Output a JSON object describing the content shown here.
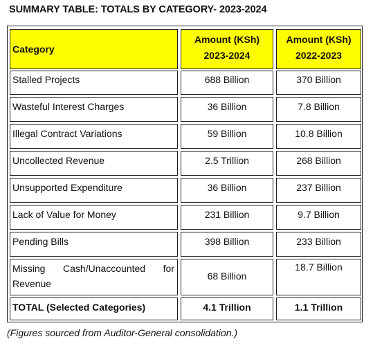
{
  "title": "SUMMARY TABLE: TOTALS BY CATEGORY- 2023-2024",
  "table": {
    "headers": {
      "category": "Category",
      "col1_line1": "Amount (KSh)",
      "col1_line2": "2023-2024",
      "col2_line1": "Amount (KSh)",
      "col2_line2": "2022-2023"
    },
    "rows": [
      {
        "category": "Stalled Projects",
        "amount_2023_2024": "688 Billion",
        "amount_2022_2023": "370 Billion"
      },
      {
        "category": "Wasteful Interest Charges",
        "amount_2023_2024": "36 Billion",
        "amount_2022_2023": "7.8 Billion"
      },
      {
        "category": "Illegal Contract Variations",
        "amount_2023_2024": "59 Billion",
        "amount_2022_2023": "10.8 Billion"
      },
      {
        "category": "Uncollected Revenue",
        "amount_2023_2024": "2.5 Trillion",
        "amount_2022_2023": "268 Billion"
      },
      {
        "category": "Unsupported Expenditure",
        "amount_2023_2024": "36 Billion",
        "amount_2022_2023": "237 Billion"
      },
      {
        "category": "Lack of Value for Money",
        "amount_2023_2024": "231 Billion",
        "amount_2022_2023": "9.7 Billion"
      },
      {
        "category": "Pending Bills",
        "amount_2023_2024": "398 Billion",
        "amount_2022_2023": "233 Billion"
      },
      {
        "category_line1": [
          "Missing",
          "Cash/Unaccounted",
          "for"
        ],
        "category_line2": "Revenue",
        "amount_2023_2024": "68 Billion",
        "amount_2022_2023": "18.7 Billion"
      }
    ],
    "total": {
      "category": "TOTAL (Selected Categories)",
      "amount_2023_2024": "4.1 Trillion",
      "amount_2022_2023": "1.1 Trillion"
    }
  },
  "footnote": "(Figures sourced from Auditor-General consolidation.)",
  "colors": {
    "header_fill": "#ffff00",
    "border": "#222222"
  }
}
